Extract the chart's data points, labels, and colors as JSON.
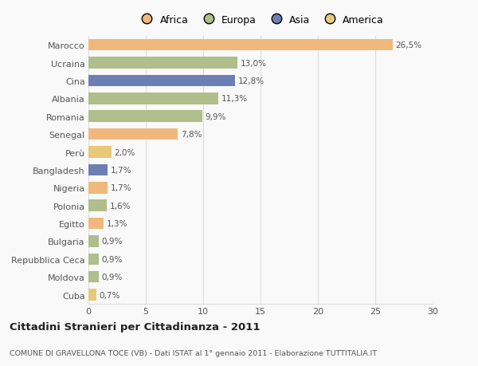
{
  "categories": [
    "Marocco",
    "Ucraina",
    "Cina",
    "Albania",
    "Romania",
    "Senegal",
    "Perù",
    "Bangladesh",
    "Nigeria",
    "Polonia",
    "Egitto",
    "Bulgaria",
    "Repubblica Ceca",
    "Moldova",
    "Cuba"
  ],
  "values": [
    26.5,
    13.0,
    12.8,
    11.3,
    9.9,
    7.8,
    2.0,
    1.7,
    1.7,
    1.6,
    1.3,
    0.9,
    0.9,
    0.9,
    0.7
  ],
  "labels": [
    "26,5%",
    "13,0%",
    "12,8%",
    "11,3%",
    "9,9%",
    "7,8%",
    "2,0%",
    "1,7%",
    "1,7%",
    "1,6%",
    "1,3%",
    "0,9%",
    "0,9%",
    "0,9%",
    "0,7%"
  ],
  "colors": [
    "#F0B87C",
    "#AFBE8A",
    "#6B7FB5",
    "#AFBE8A",
    "#AFBE8A",
    "#F0B87C",
    "#E8C97A",
    "#6B7FB5",
    "#F0B87C",
    "#AFBE8A",
    "#F0B87C",
    "#AFBE8A",
    "#AFBE8A",
    "#AFBE8A",
    "#E8C97A"
  ],
  "legend_labels": [
    "Africa",
    "Europa",
    "Asia",
    "America"
  ],
  "legend_colors": [
    "#F0B87C",
    "#AFBE8A",
    "#6B7FB5",
    "#E8C97A"
  ],
  "title": "Cittadini Stranieri per Cittadinanza - 2011",
  "subtitle": "COMUNE DI GRAVELLONA TOCE (VB) - Dati ISTAT al 1° gennaio 2011 - Elaborazione TUTTITALIA.IT",
  "xlim": [
    0,
    30
  ],
  "xticks": [
    0,
    5,
    10,
    15,
    20,
    25,
    30
  ],
  "bg_color": "#f9f9f9",
  "grid_color": "#dddddd"
}
